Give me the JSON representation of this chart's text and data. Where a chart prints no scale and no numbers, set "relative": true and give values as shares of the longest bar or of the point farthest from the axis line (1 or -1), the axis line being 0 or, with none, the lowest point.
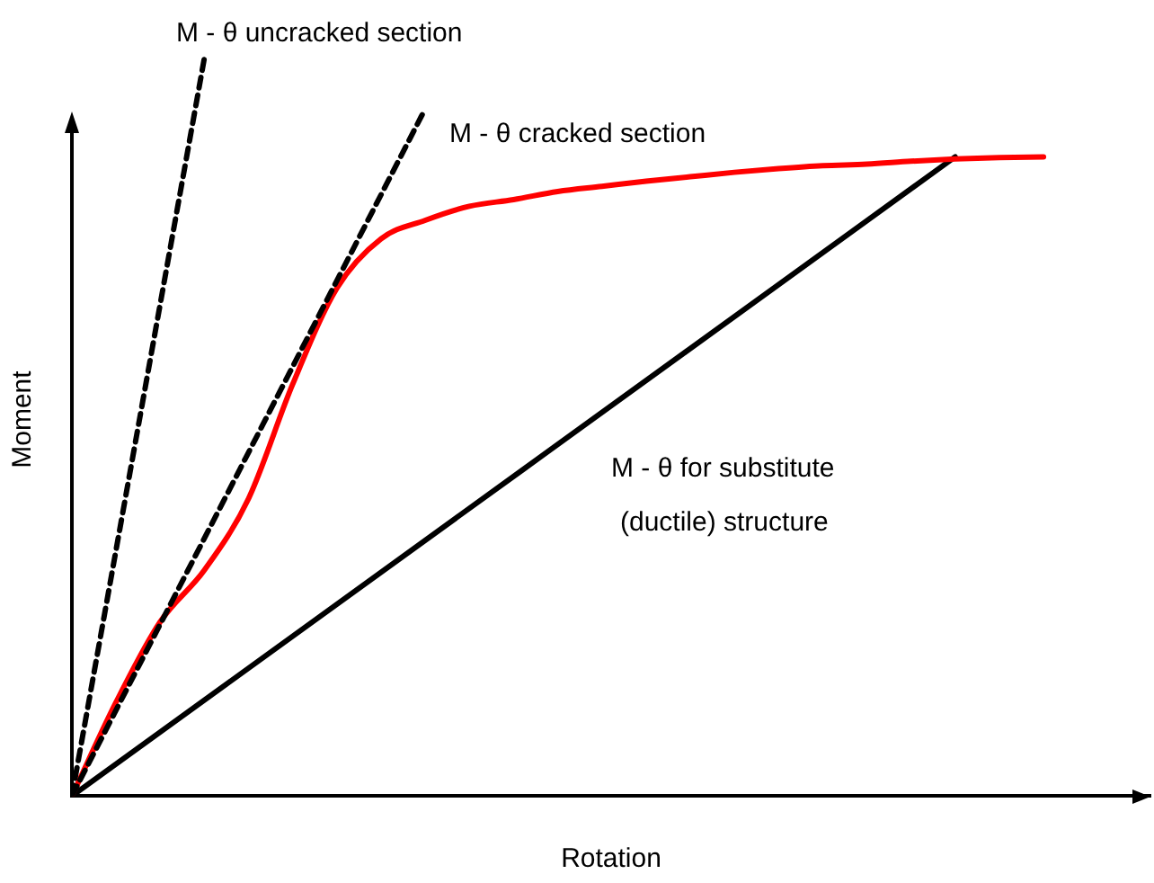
{
  "chart_data": {
    "type": "line",
    "relative": true,
    "xlabel": "Rotation",
    "ylabel": "Moment",
    "marker": "none",
    "legend": false,
    "categories": [
      null,
      null,
      null,
      null,
      null,
      null,
      null,
      null,
      null,
      null,
      null,
      null,
      null,
      null,
      null,
      null,
      null,
      null,
      null,
      null,
      null,
      null,
      null
    ],
    "series": [
      {
        "color": "#000000",
        "line_style": "dashed",
        "values": [
          0,
          null,
          null,
          1,
          null,
          null,
          null,
          null,
          null,
          null,
          null,
          null,
          null,
          null,
          null,
          null,
          null,
          null,
          null,
          null,
          null,
          null,
          null
        ]
      },
      {
        "color": "#000000",
        "line_style": "dashed",
        "values": [
          0,
          null,
          null,
          null,
          null,
          null,
          null,
          null,
          0.931,
          null,
          null,
          null,
          null,
          null,
          null,
          null,
          null,
          null,
          null,
          null,
          null,
          null,
          null
        ]
      },
      {
        "color": "#ff0000",
        "line_style": "solid",
        "values": [
          0,
          0.127,
          0.236,
          0.306,
          0.403,
          0.558,
          0.688,
          0.755,
          0.78,
          0.799,
          0.808,
          0.819,
          0.826,
          0.833,
          0.839,
          0.845,
          0.85,
          0.854,
          0.856,
          0.86,
          0.863,
          0.865,
          0.866
        ]
      },
      {
        "color": "#000000",
        "line_style": "solid",
        "values": [
          0,
          null,
          null,
          null,
          null,
          null,
          null,
          null,
          null,
          null,
          null,
          null,
          null,
          null,
          null,
          null,
          null,
          null,
          null,
          null,
          0.866,
          null,
          null
        ]
      }
    ],
    "annotations": [
      "M - θ uncracked section",
      "M - θ cracked section",
      "M - θ for substitute",
      "(ductile) structure"
    ]
  }
}
